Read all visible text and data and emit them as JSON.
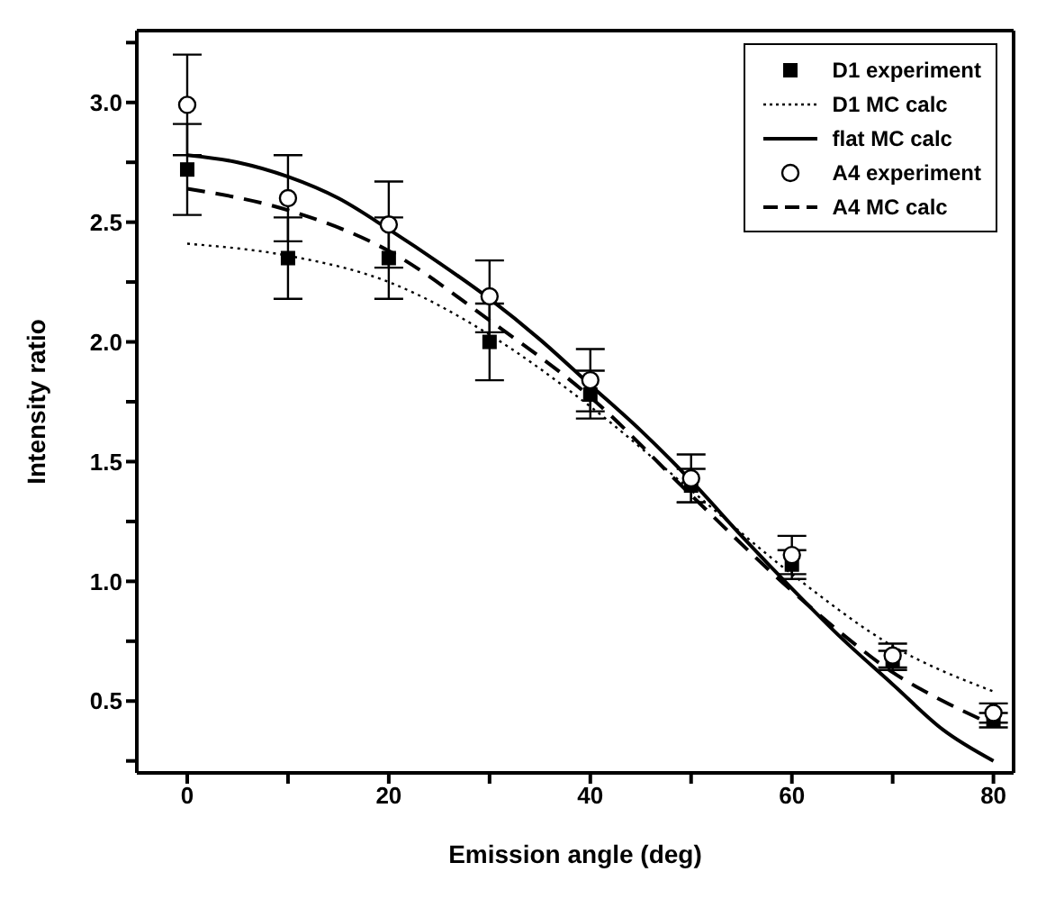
{
  "chart_data": {
    "type": "line",
    "xlabel": "Emission angle (deg)",
    "ylabel": "Intensity ratio",
    "xlim": [
      -5,
      82
    ],
    "ylim": [
      0.2,
      3.3
    ],
    "xticks": [
      0,
      {
        "value": 10,
        "label": null
      },
      20,
      {
        "value": 30,
        "label": null
      },
      40,
      {
        "value": 50,
        "label": null
      },
      60,
      {
        "value": 70,
        "label": null
      },
      80
    ],
    "yticks": [
      {
        "value": 0.25,
        "label": null
      },
      0.5,
      {
        "value": 0.75,
        "label": null
      },
      {
        "value": 1,
        "label": "1.0"
      },
      {
        "value": 1.25,
        "label": null
      },
      1.5,
      {
        "value": 1.75,
        "label": null
      },
      {
        "value": 2,
        "label": "2.0"
      },
      {
        "value": 2.25,
        "label": null
      },
      2.5,
      {
        "value": 2.75,
        "label": null
      },
      {
        "value": 3,
        "label": "3.0"
      },
      {
        "value": 3.25,
        "label": null
      }
    ],
    "grid": false,
    "legend": "top right",
    "series": [
      {
        "name": "D1 experiment",
        "type": "scatter",
        "marker": "square",
        "color": "#000000",
        "x": [
          0,
          10,
          20,
          30,
          40,
          50,
          60,
          70,
          80
        ],
        "values": [
          2.72,
          2.35,
          2.35,
          2.0,
          1.78,
          1.4,
          1.07,
          0.67,
          0.42
        ],
        "errors": [
          0.19,
          0.17,
          0.17,
          0.16,
          0.1,
          0.07,
          0.06,
          0.04,
          0.03
        ]
      },
      {
        "name": "D1 MC calc",
        "marker": "none",
        "line_style": "dotted",
        "color": "#000000",
        "x": [
          0,
          10,
          20,
          30,
          40,
          50,
          60,
          70,
          80
        ],
        "values": [
          2.41,
          2.36,
          2.25,
          2.03,
          1.73,
          1.38,
          1.03,
          0.73,
          0.54
        ]
      },
      {
        "name": "flat MC calc",
        "marker": "none",
        "line_style": "solid",
        "color": "#000000",
        "x": [
          0,
          5,
          10,
          15,
          20,
          25,
          30,
          35,
          40,
          45,
          50,
          55,
          60,
          65,
          70,
          75,
          80
        ],
        "values": [
          2.78,
          2.75,
          2.69,
          2.6,
          2.47,
          2.33,
          2.18,
          2.01,
          1.82,
          1.63,
          1.42,
          1.19,
          0.97,
          0.76,
          0.57,
          0.38,
          0.25
        ]
      },
      {
        "name": "A4 experiment",
        "type": "scatter",
        "marker": "circle",
        "color": "#000000",
        "x": [
          0,
          10,
          20,
          30,
          40,
          50,
          60,
          70,
          80
        ],
        "values": [
          2.99,
          2.6,
          2.49,
          2.19,
          1.84,
          1.43,
          1.11,
          0.69,
          0.45
        ],
        "errors": [
          0.21,
          0.18,
          0.18,
          0.15,
          0.13,
          0.1,
          0.08,
          0.05,
          0.04
        ]
      },
      {
        "name": "A4 MC calc",
        "marker": "none",
        "line_style": "dashed",
        "color": "#000000",
        "x": [
          0,
          10,
          20,
          30,
          40,
          50,
          60,
          65,
          70,
          75,
          80
        ],
        "values": [
          2.64,
          2.55,
          2.38,
          2.09,
          1.77,
          1.36,
          0.96,
          0.78,
          0.62,
          0.5,
          0.4
        ]
      }
    ]
  }
}
